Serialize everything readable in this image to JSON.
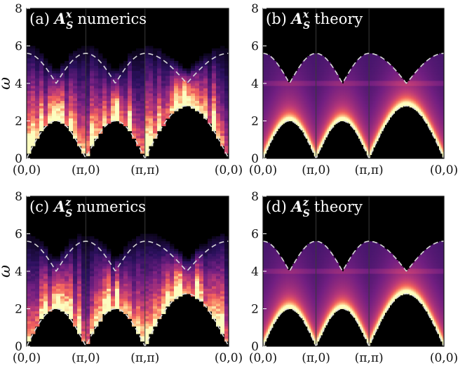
{
  "chart_data": [
    {
      "type": "heatmap",
      "panel": "a",
      "title": {
        "prefix": "(a)",
        "symbol": "A",
        "sub": "S",
        "sup": "x",
        "suffix": "numerics"
      },
      "ylabel": "ω",
      "ylim": [
        0,
        8
      ],
      "yticks": [
        0,
        2,
        4,
        6,
        8
      ],
      "x_ticks": [
        "(0,0)",
        "(π,0)",
        "(π,π)",
        "(0,0)"
      ],
      "x_segments": [
        1,
        1,
        1.414
      ],
      "lower_edge": [
        0,
        2,
        0,
        2,
        0,
        2.8,
        0
      ],
      "upper_edge": [
        5.6,
        4.0,
        5.6,
        4.0,
        5.6,
        4.0,
        5.6
      ],
      "style": "numerics"
    },
    {
      "type": "heatmap",
      "panel": "b",
      "title": {
        "prefix": "(b)",
        "symbol": "A",
        "sub": "S",
        "sup": "x",
        "suffix": "theory"
      },
      "ylabel": "",
      "ylim": [
        0,
        8
      ],
      "yticks": [
        0,
        2,
        4,
        6,
        8
      ],
      "x_ticks": [
        "(0,0)",
        "(π,0)",
        "(π,π)",
        "(0,0)"
      ],
      "x_segments": [
        1,
        1,
        1.414
      ],
      "lower_edge": [
        0,
        2,
        0,
        2,
        0,
        2.8,
        0
      ],
      "upper_edge": [
        5.6,
        4.0,
        5.6,
        4.0,
        5.6,
        4.0,
        5.6
      ],
      "style": "theory"
    },
    {
      "type": "heatmap",
      "panel": "c",
      "title": {
        "prefix": "(c)",
        "symbol": "A",
        "sub": "S",
        "sup": "z",
        "suffix": "numerics"
      },
      "ylabel": "ω",
      "ylim": [
        0,
        8
      ],
      "yticks": [
        0,
        2,
        4,
        6,
        8
      ],
      "x_ticks": [
        "(0,0)",
        "(π,0)",
        "(π,π)",
        "(0,0)"
      ],
      "x_segments": [
        1,
        1,
        1.414
      ],
      "lower_edge": [
        0,
        2,
        0,
        2,
        0,
        2.8,
        0
      ],
      "upper_edge": [
        5.6,
        4.0,
        5.6,
        4.0,
        5.6,
        4.0,
        5.6
      ],
      "style": "numerics"
    },
    {
      "type": "heatmap",
      "panel": "d",
      "title": {
        "prefix": "(d)",
        "symbol": "A",
        "sub": "S",
        "sup": "z",
        "suffix": "theory"
      },
      "ylabel": "",
      "ylim": [
        0,
        8
      ],
      "yticks": [
        0,
        2,
        4,
        6,
        8
      ],
      "x_ticks": [
        "(0,0)",
        "(π,0)",
        "(π,π)",
        "(0,0)"
      ],
      "x_segments": [
        1,
        1,
        1.414
      ],
      "lower_edge": [
        0,
        2,
        0,
        2,
        0,
        2.8,
        0
      ],
      "upper_edge": [
        5.6,
        4.0,
        5.6,
        4.0,
        5.6,
        4.0,
        5.6
      ],
      "style": "theory"
    }
  ],
  "colors": {
    "background": "#000000",
    "dashed_line": "#d8d8d8",
    "colormap": [
      "#000004",
      "#2c115f",
      "#721f81",
      "#b73779",
      "#f1605d",
      "#feb078",
      "#fcfdbf"
    ]
  }
}
